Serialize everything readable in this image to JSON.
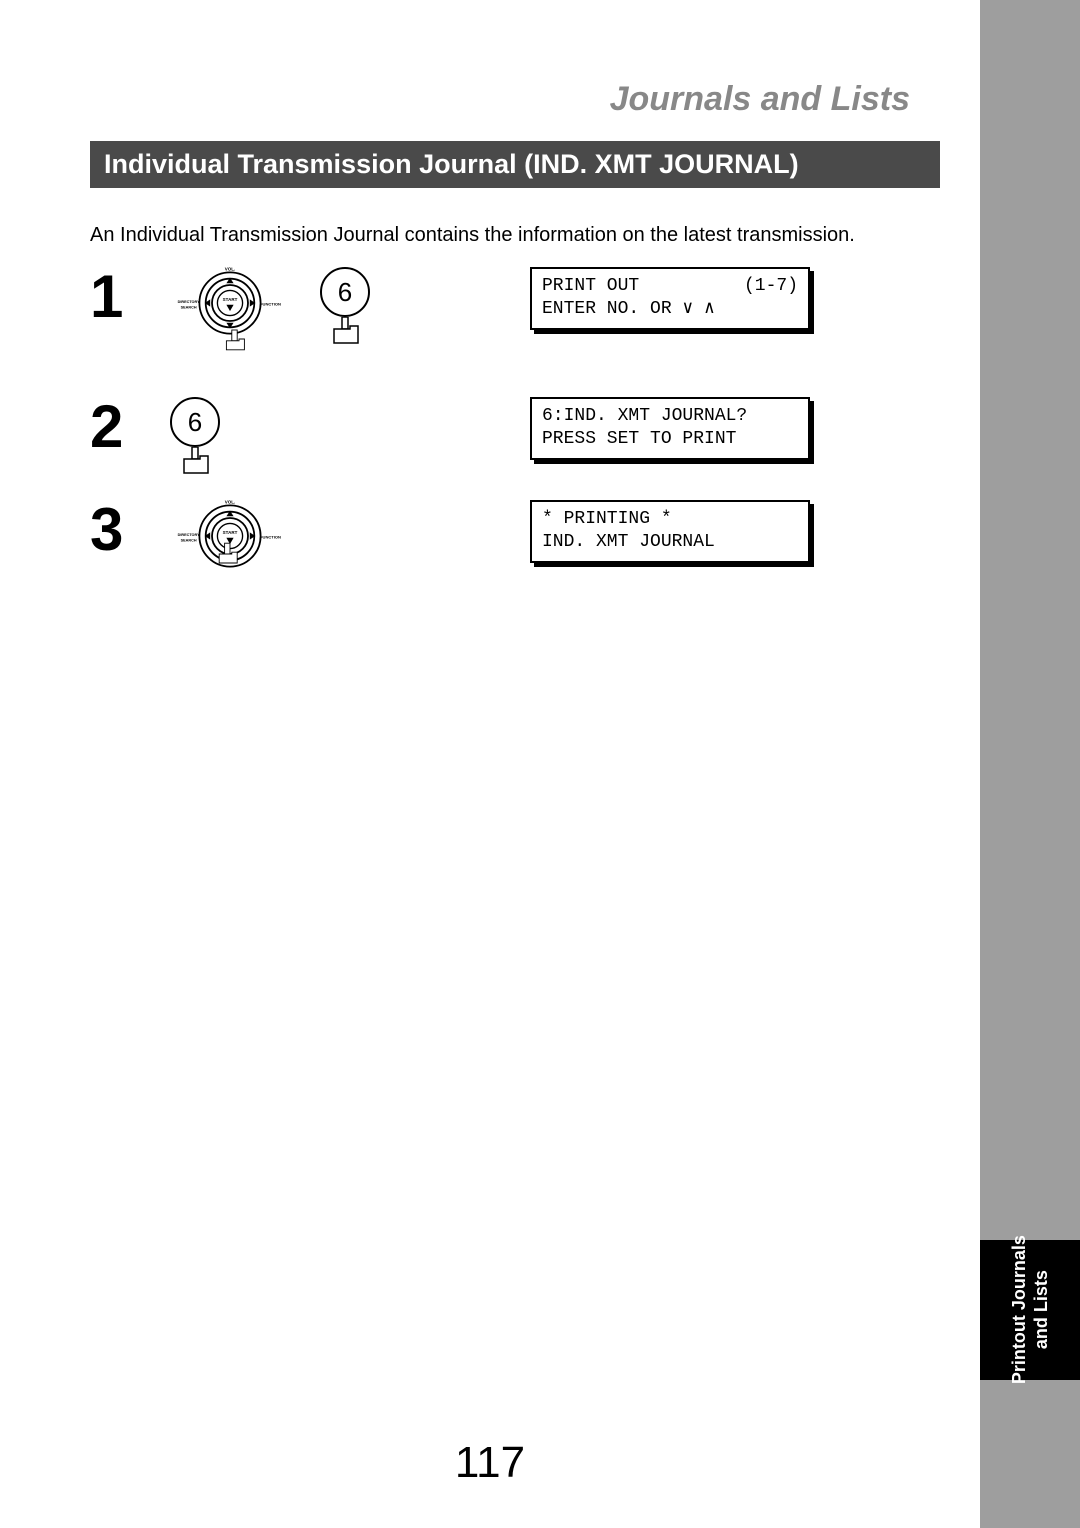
{
  "section_title": "Journals and Lists",
  "heading": "Individual Transmission Journal (IND. XMT JOURNAL)",
  "intro_text": "An Individual Transmission Journal contains the information on the latest transmission.",
  "steps": [
    {
      "num": "1",
      "key_label": "6",
      "lcd_row1_left": "PRINT OUT",
      "lcd_row1_right": "(1-7)",
      "lcd_row2": "ENTER NO. OR ∨ ∧"
    },
    {
      "num": "2",
      "key_label": "6",
      "lcd_row1_left": "6:IND. XMT JOURNAL?",
      "lcd_row1_right": "",
      "lcd_row2": "PRESS SET TO PRINT"
    },
    {
      "num": "3",
      "key_label": "",
      "lcd_row1_left": " * PRINTING *",
      "lcd_row1_right": "",
      "lcd_row2": "IND. XMT JOURNAL"
    }
  ],
  "dial": {
    "top_label": "VOL.",
    "left_label": "DIRECTORY\nSEARCH",
    "right_label": "FUNCTION",
    "center_label": "START"
  },
  "side_tab": "Printout Journals\nand Lists",
  "page_number": "117"
}
